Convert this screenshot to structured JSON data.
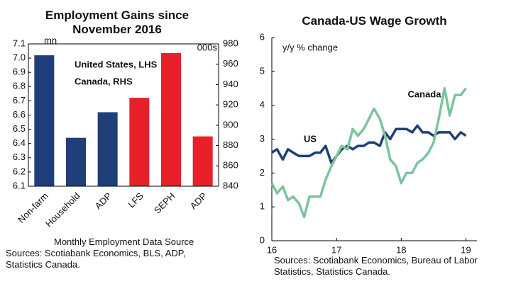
{
  "chart_data": [
    {
      "type": "bar",
      "title": "Employment Gains since November 2016",
      "categories": [
        "Non-farm",
        "Household",
        "ADP",
        "LFS",
        "SEPH",
        "ADP"
      ],
      "series": [
        {
          "name": "United States, LHS",
          "color": "#1f3f7a",
          "values": [
            7.02,
            6.44,
            6.62,
            null,
            null,
            null
          ]
        },
        {
          "name": "Canada, RHS",
          "color": "#e8202a",
          "axis": "y2",
          "values": [
            null,
            null,
            null,
            927,
            971,
            889
          ]
        }
      ],
      "ylim": [
        6.1,
        7.1
      ],
      "yticks": [
        6.1,
        6.2,
        6.3,
        6.4,
        6.5,
        6.6,
        6.7,
        6.8,
        6.9,
        {
          "value": 7,
          "label": "7.0"
        },
        7.1
      ],
      "y2lim": [
        840,
        980
      ],
      "y2ticks": [
        840,
        860,
        880,
        900,
        920,
        940,
        960,
        980
      ],
      "ylabel": "mn",
      "y2label": "000s",
      "annotations": [
        "Monthly Employment Data Source",
        "Sources: Scotiabank Economics, BLS, ADP, Statistics Canada."
      ]
    },
    {
      "type": "line",
      "title": "Canada-US Wage Growth",
      "x": [
        16,
        16.08,
        16.17,
        16.25,
        16.33,
        16.42,
        16.5,
        16.58,
        16.67,
        16.75,
        16.83,
        16.92,
        17,
        17.08,
        17.17,
        17.25,
        17.33,
        17.42,
        17.5,
        17.58,
        17.67,
        17.75,
        17.83,
        17.92,
        18,
        18.08,
        18.17,
        18.25,
        18.33,
        18.42,
        18.5,
        18.58,
        18.67,
        18.75,
        18.83,
        18.92,
        19
      ],
      "series": [
        {
          "name": "US",
          "color": "#1f3f7a",
          "values": [
            2.6,
            2.7,
            2.4,
            2.7,
            2.6,
            2.5,
            2.5,
            2.5,
            2.6,
            2.6,
            2.8,
            2.3,
            2.5,
            2.7,
            2.8,
            2.7,
            2.8,
            2.8,
            2.9,
            2.9,
            2.8,
            3.2,
            3.0,
            3.3,
            3.3,
            3.3,
            3.2,
            3.4,
            3.2,
            3.2,
            3.1,
            3.2,
            3.2,
            3.2,
            3.0,
            3.2,
            3.1
          ]
        },
        {
          "name": "Canada",
          "color": "#7cc49e",
          "values": [
            1.7,
            1.4,
            1.6,
            1.2,
            1.3,
            1.1,
            0.7,
            1.3,
            1.3,
            1.3,
            1.8,
            2.2,
            2.5,
            2.8,
            2.7,
            3.3,
            3.1,
            3.3,
            3.6,
            3.9,
            3.6,
            3.1,
            2.4,
            2.2,
            1.7,
            2.0,
            2.0,
            2.3,
            2.4,
            2.6,
            2.9,
            3.6,
            4.5,
            3.7,
            4.3,
            4.3,
            4.5
          ]
        }
      ],
      "xlim": [
        16,
        19.17
      ],
      "xticks": [
        16,
        17,
        18,
        19
      ],
      "ylim": [
        0,
        6
      ],
      "yticks": [
        0,
        1,
        2,
        3,
        4,
        5,
        6
      ],
      "ylabel": "y/y % change",
      "annotations": [
        "Sources: Scotiabank Economics, Bureau of Labor Statistics, Statistics Canada."
      ]
    }
  ]
}
